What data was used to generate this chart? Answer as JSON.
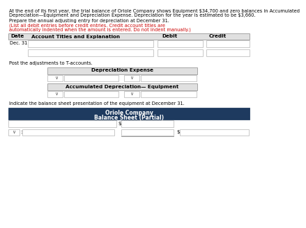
{
  "title_line1": "At the end of its first year, the trial balance of Oriole Company shows Equipment $34,700 and zero balances in Accumulated",
  "title_line2": "Depreciation—Equipment and Depreciation Expense. Depreciation for the year is estimated to be $3,660.",
  "instruction_plain": "Prepare the annual adjusting entry for depreciation at December 31. ",
  "instruction_red": "(List all debit entries before credit entries. Credit account titles are",
  "instruction_red2": "automatically indented when the amount is entered. Do not indent manually.)",
  "date_label": "Dec. 31",
  "post_label": "Post the adjustments to T-accounts.",
  "t_account1_title": "Depreciation Expense",
  "t_account2_title": "Accumulated Depreciation— Equipment",
  "indicate_label": "Indicate the balance sheet presentation of the equipment at December 31.",
  "bs_title_line1": "Oriole Company",
  "bs_title_line2": "Balance Sheet (Partial)",
  "bs_header_bg": "#1e3a5f",
  "bs_header_fg": "#ffffff",
  "table_header_bg": "#e0e0e0",
  "table_header_fg": "#000000",
  "t_account_header_bg": "#e0e0e0",
  "bg_color": "#ffffff",
  "text_color": "#000000",
  "red_color": "#cc0000",
  "box_edge": "#c0c0c0",
  "dollar_sign": "$",
  "fs_body": 5.0,
  "fs_header": 5.2,
  "fs_bold": 5.2
}
